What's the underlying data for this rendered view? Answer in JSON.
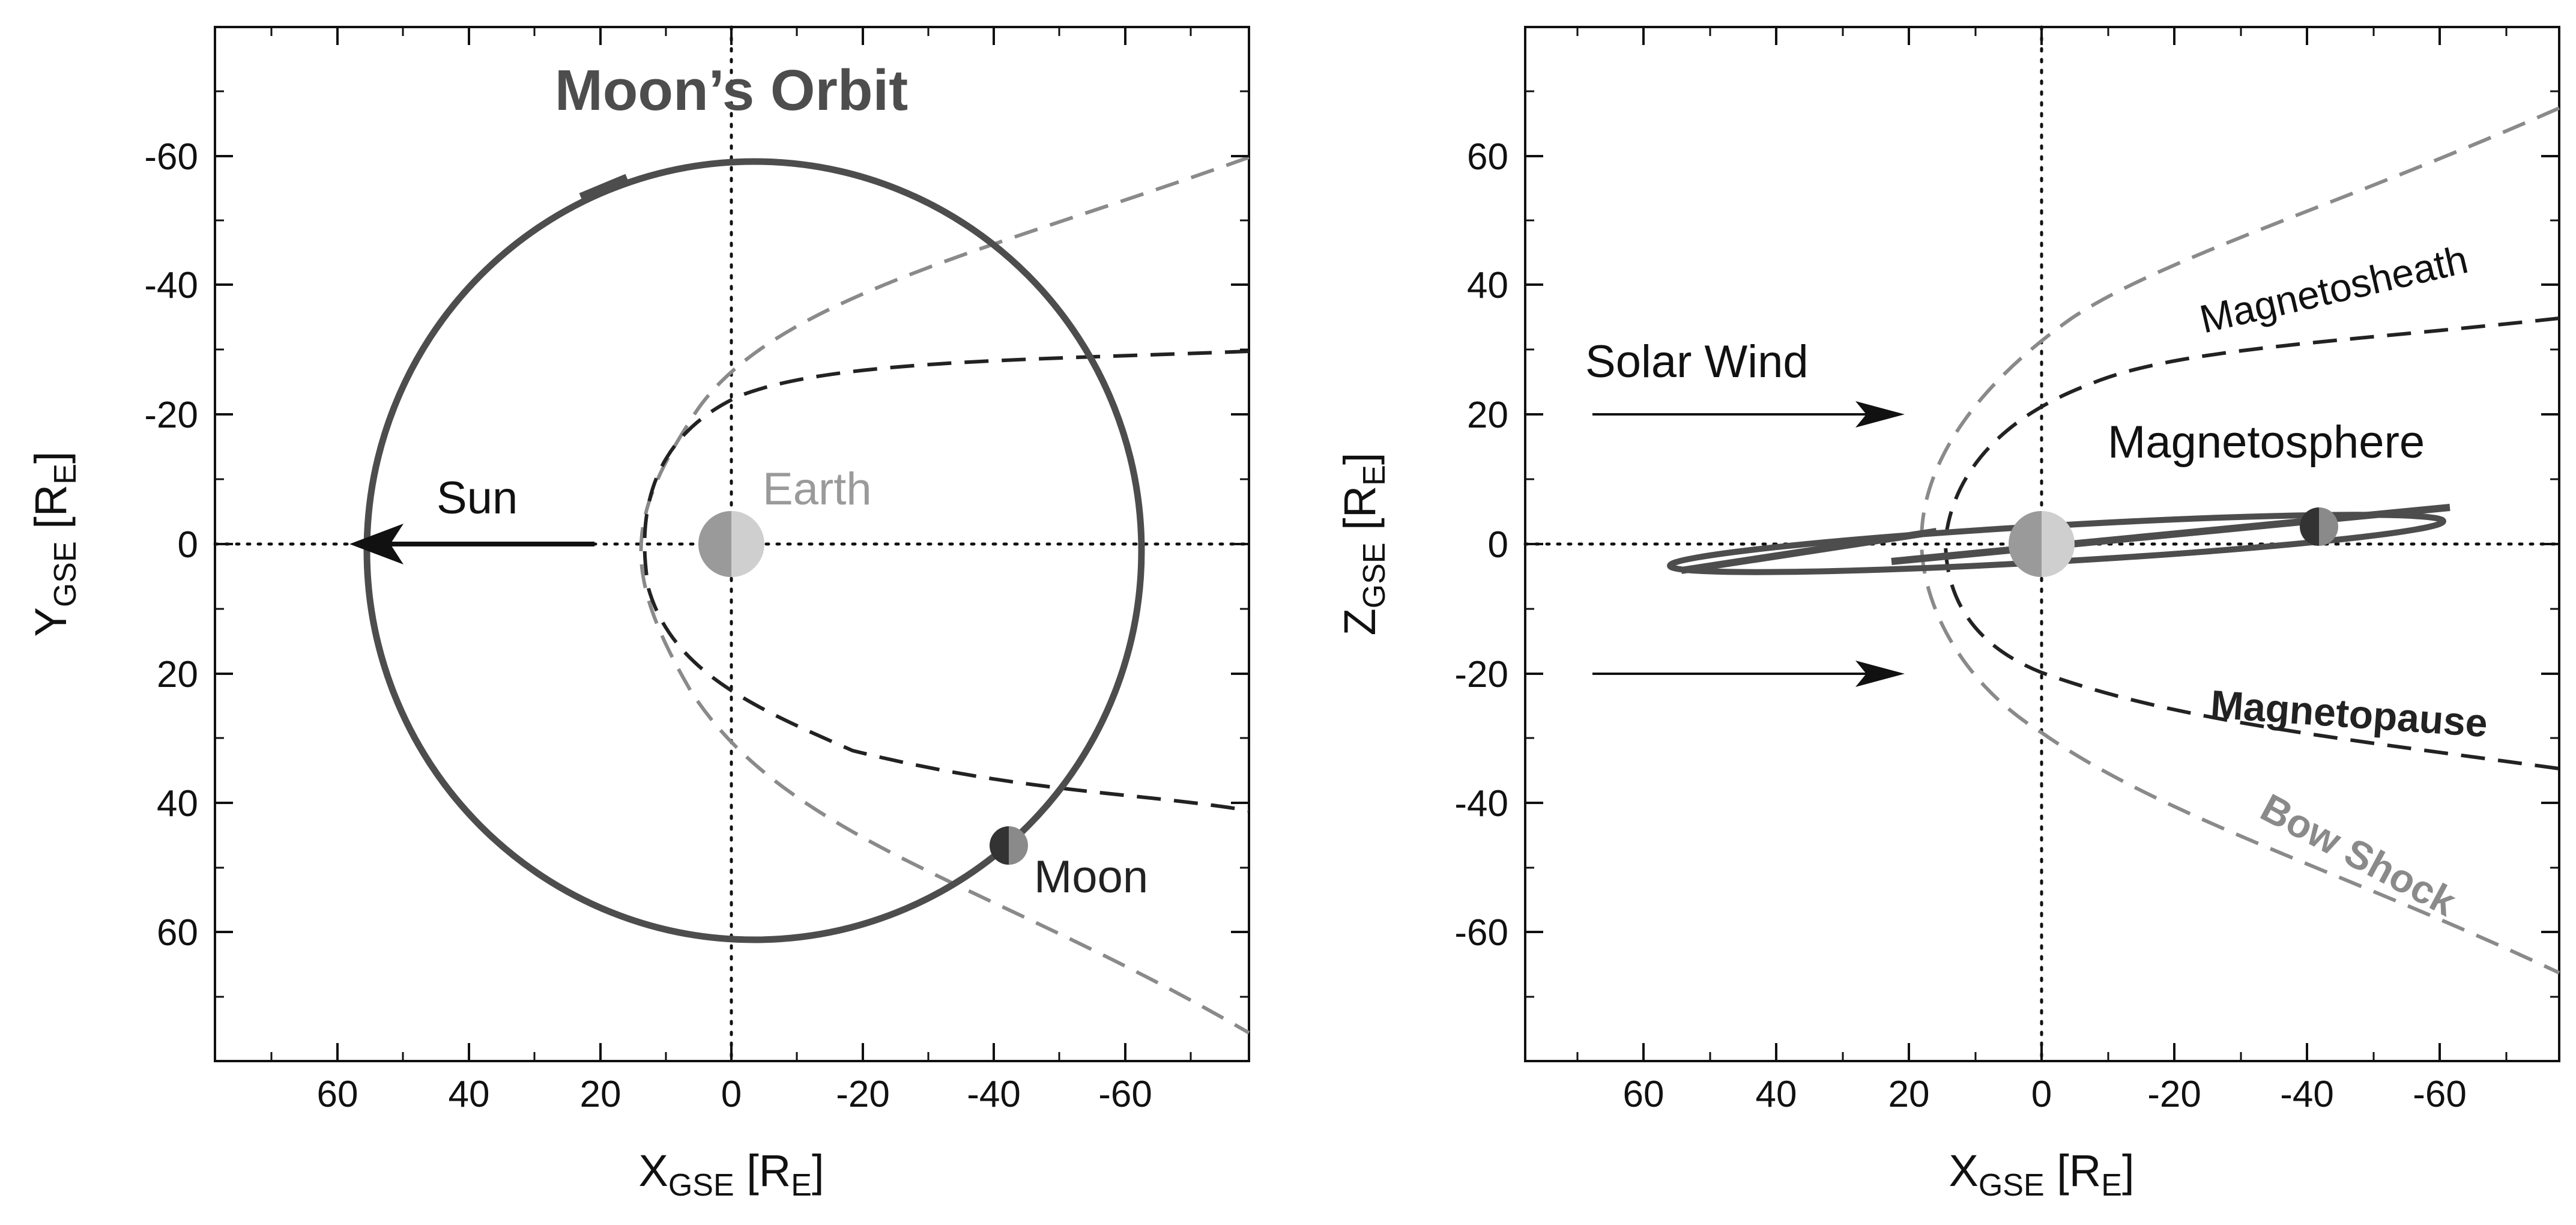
{
  "left_panel": {
    "title": "Moon’s Orbit",
    "xlabel": {
      "main": "X",
      "sub": "GSE",
      "bracket_open": " [R",
      "unit_sub": "E",
      "bracket_close": "]"
    },
    "ylabel": {
      "main": "Y",
      "sub": "GSE",
      "bracket_open": " [R",
      "unit_sub": "E",
      "bracket_close": "]"
    },
    "x_ticks": [
      "60",
      "40",
      "20",
      "0",
      "-20",
      "-40",
      "-60"
    ],
    "y_ticks": [
      "-60",
      "-40",
      "-20",
      "0",
      "20",
      "40",
      "60"
    ],
    "labels": {
      "sun": "Sun",
      "earth": "Earth",
      "moon": "Moon"
    }
  },
  "right_panel": {
    "xlabel": {
      "main": "X",
      "sub": "GSE",
      "bracket_open": " [R",
      "unit_sub": "E",
      "bracket_close": "]"
    },
    "ylabel": {
      "main": "Z",
      "sub": "GSE",
      "bracket_open": " [R",
      "unit_sub": "E",
      "bracket_close": "]"
    },
    "x_ticks": [
      "60",
      "40",
      "20",
      "0",
      "-20",
      "-40",
      "-60"
    ],
    "y_ticks": [
      "60",
      "40",
      "20",
      "0",
      "-20",
      "-40",
      "-60"
    ],
    "labels": {
      "solar_wind": "Solar Wind",
      "magnetosheath": "Magnetosheath",
      "magnetosphere": "Magnetosphere",
      "magnetopause": "Magnetopause",
      "bow_shock": "Bow Shock"
    }
  },
  "colors": {
    "axis": "#111111",
    "orbit": "#4d4d4d",
    "bow_shock": "#8a8a8a",
    "magnetopause": "#222222",
    "earth_light": "#cfcfcf",
    "earth_dark": "#9a9a9a",
    "earth_label": "#9a9a9a",
    "moon_light": "#8a8a8a",
    "moon_dark": "#333333",
    "title": "#4d4d4d"
  }
}
